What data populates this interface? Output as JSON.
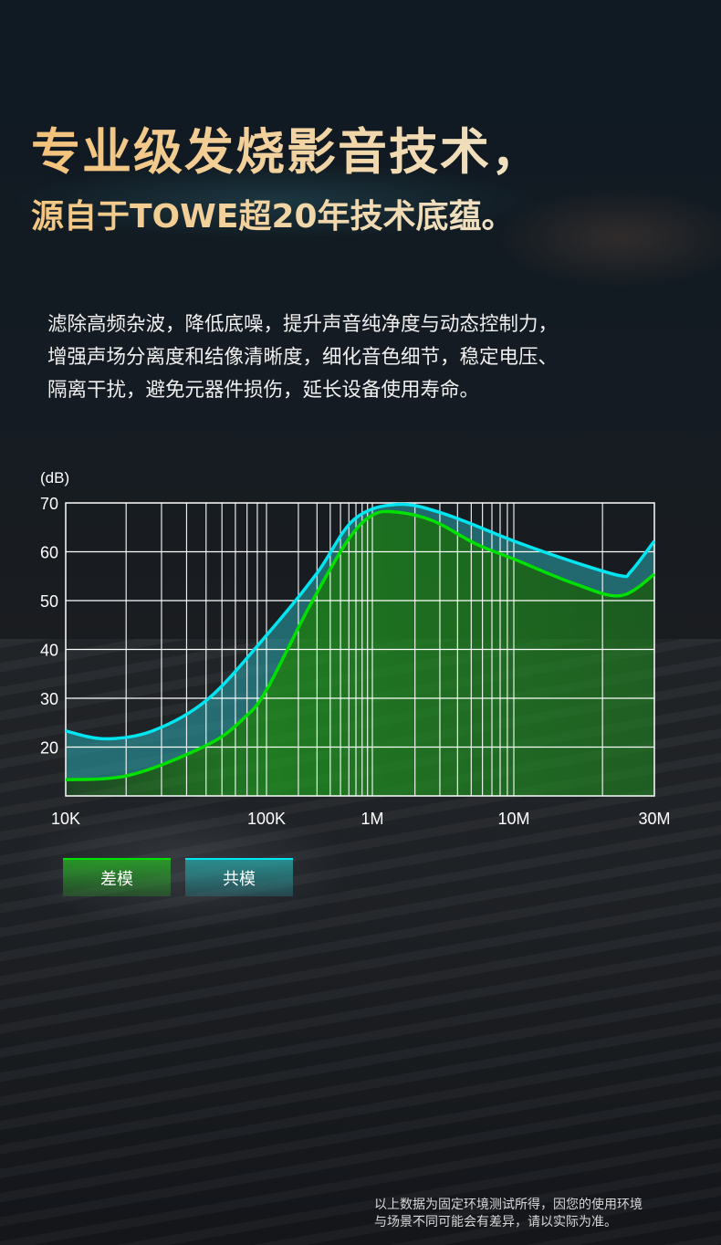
{
  "header": {
    "title_line1": "专业级发烧影音技术，",
    "title_line2": "源自于TOWE超20年技术底蕴。"
  },
  "description": [
    "滤除高频杂波，降低底噪，提升声音纯净度与动态控制力，",
    "增强声场分离度和结像清晰度，细化音色细节，稳定电压、",
    "隔离干扰，避免元器件损伤，延长设备使用寿命。"
  ],
  "legend": {
    "differential": "差模",
    "common": "共模"
  },
  "footnote": [
    "以上数据为固定环境测试所得，因您的使用环境",
    "与场景不同可能会有差异，请以实际为准。"
  ],
  "colors": {
    "differential": "#00e000",
    "common": "#00e5f0",
    "title_gold": "#f3c27a"
  },
  "chart_data": {
    "type": "line",
    "ylabel": "(dB)",
    "xlabel": "",
    "x_scale": "log",
    "xlim": [
      10000,
      30000000
    ],
    "ylim": [
      10,
      70
    ],
    "grid": true,
    "legend_position": "bottom-left",
    "y_ticks": [
      20,
      30,
      40,
      50,
      60,
      70
    ],
    "x_ticks": [
      {
        "value": 10000,
        "label": "10K"
      },
      {
        "value": 100000,
        "label": "100K"
      },
      {
        "value": 1000000,
        "label": "1M"
      },
      {
        "value": 10000000,
        "label": "10M"
      },
      {
        "value": 30000000,
        "label": "30M"
      }
    ],
    "series": [
      {
        "name": "共模",
        "color": "#00e5f0",
        "x": [
          10000,
          15600,
          27000,
          51000,
          100000,
          295000,
          670000,
          1500000,
          3200000,
          10000000,
          16000000,
          23000000,
          25000000,
          30000000
        ],
        "y": [
          23.3,
          21.7,
          23.3,
          29.8,
          42.9,
          55.4,
          66.6,
          69.7,
          67.8,
          62.2,
          57.9,
          55.1,
          56,
          62.2
        ]
      },
      {
        "name": "差模",
        "color": "#00e000",
        "x": [
          10000,
          21000,
          51000,
          78000,
          100000,
          250000,
          580000,
          1000000,
          1500000,
          2700000,
          5400000,
          10000000,
          16000000,
          23000000,
          30000000
        ],
        "y": [
          13.3,
          14.3,
          20.5,
          26.1,
          31.7,
          48.5,
          62.2,
          67.5,
          68.1,
          66.3,
          61.6,
          58.5,
          53.5,
          51,
          55.4
        ]
      }
    ]
  }
}
